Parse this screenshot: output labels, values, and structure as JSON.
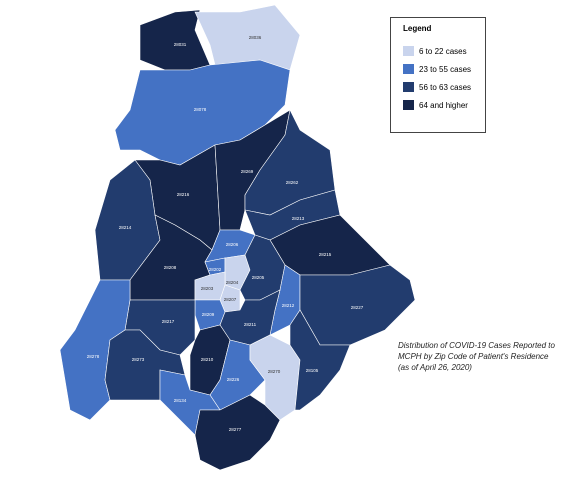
{
  "legend": {
    "title": "Legend",
    "items": [
      {
        "label": "6 to 22 cases",
        "color": "#c9d4ed"
      },
      {
        "label": "23 to 55 cases",
        "color": "#4472c4"
      },
      {
        "label": "56 to 63 cases",
        "color": "#223c6e"
      },
      {
        "label": "64 and higher",
        "color": "#15254a"
      }
    ]
  },
  "caption": [
    "Distribution of COVID-19 Cases Reported to",
    "MCPH by Zip Code of Patient's Residence",
    "(as of April 26, 2020)"
  ],
  "regions": [
    {
      "label": "28031",
      "color": "#15254a"
    },
    {
      "label": "28036",
      "color": "#c9d4ed"
    },
    {
      "label": "28078",
      "color": "#4472c4"
    },
    {
      "label": "28216",
      "color": "#15254a"
    },
    {
      "label": "28269",
      "color": "#15254a"
    },
    {
      "label": "28262",
      "color": "#223c6e"
    },
    {
      "label": "28213",
      "color": "#223c6e"
    },
    {
      "label": "28215",
      "color": "#15254a"
    },
    {
      "label": "28214",
      "color": "#223c6e"
    },
    {
      "label": "28208",
      "color": "#15254a"
    },
    {
      "label": "28206",
      "color": "#4472c4"
    },
    {
      "label": "28202",
      "color": "#4472c4"
    },
    {
      "label": "28204",
      "color": "#c9d4ed"
    },
    {
      "label": "28203",
      "color": "#c9d4ed"
    },
    {
      "label": "28207",
      "color": "#c9d4ed"
    },
    {
      "label": "28205",
      "color": "#223c6e"
    },
    {
      "label": "28212",
      "color": "#4472c4"
    },
    {
      "label": "28227",
      "color": "#223c6e"
    },
    {
      "label": "28209",
      "color": "#4472c4"
    },
    {
      "label": "28211",
      "color": "#223c6e"
    },
    {
      "label": "28217",
      "color": "#223c6e"
    },
    {
      "label": "28278",
      "color": "#4472c4"
    },
    {
      "label": "28273",
      "color": "#223c6e"
    },
    {
      "label": "28210",
      "color": "#15254a"
    },
    {
      "label": "28226",
      "color": "#4472c4"
    },
    {
      "label": "28270",
      "color": "#c9d4ed"
    },
    {
      "label": "28105",
      "color": "#223c6e"
    },
    {
      "label": "28134",
      "color": "#4472c4"
    },
    {
      "label": "28277",
      "color": "#15254a"
    }
  ]
}
